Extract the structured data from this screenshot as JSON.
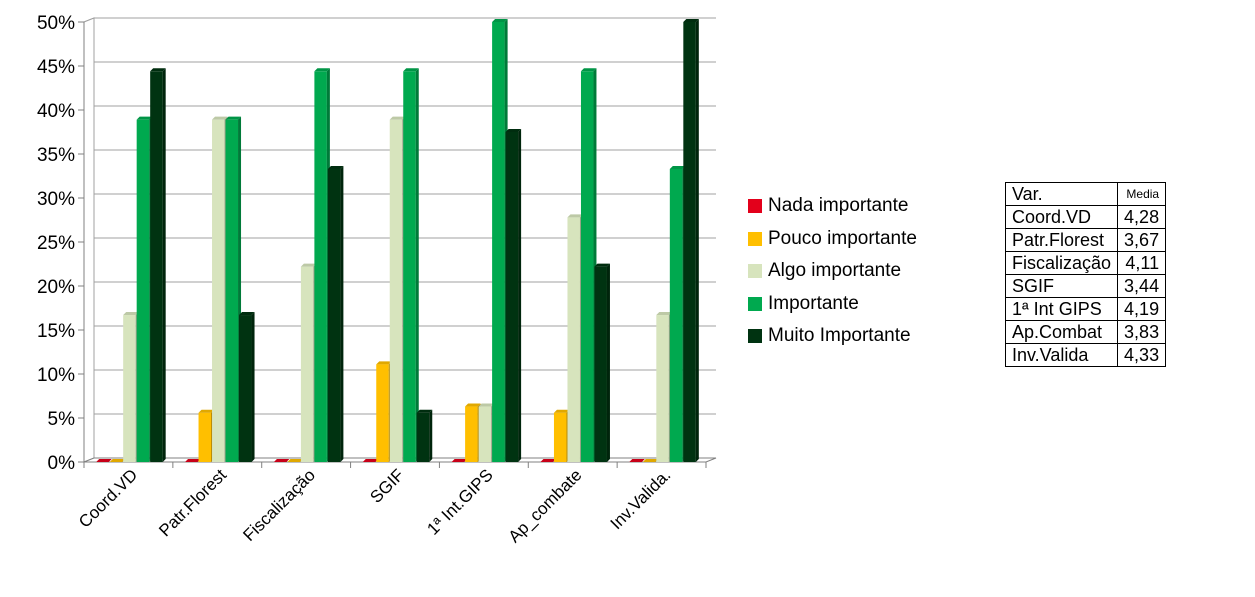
{
  "chart_data": {
    "type": "bar",
    "categories": [
      "Coord.VD",
      "Patr.Florest",
      "Fiscalização",
      "SGIF",
      "1ª Int.GIPS",
      "Ap_combate",
      "Inv.Valida."
    ],
    "series": [
      {
        "name": "Nada importante",
        "color": "#e3001b",
        "values": [
          0,
          0,
          0,
          0,
          0,
          0,
          0
        ]
      },
      {
        "name": "Pouco importante",
        "color": "#ffbf00",
        "values": [
          0,
          5.6,
          0,
          11.1,
          6.3,
          5.6,
          0
        ]
      },
      {
        "name": "Algo importante",
        "color": "#d7e4bd",
        "values": [
          16.7,
          38.9,
          22.2,
          38.9,
          6.3,
          27.8,
          16.7
        ]
      },
      {
        "name": "Importante",
        "color": "#00a94f",
        "values": [
          38.9,
          38.9,
          44.4,
          44.4,
          50.0,
          44.4,
          33.3
        ]
      },
      {
        "name": "Muito Importante",
        "color": "#003311",
        "values": [
          44.4,
          16.7,
          33.3,
          5.6,
          37.5,
          22.2,
          50.0
        ]
      }
    ],
    "yticks": [
      "0%",
      "5%",
      "10%",
      "15%",
      "20%",
      "25%",
      "30%",
      "35%",
      "40%",
      "45%",
      "50%"
    ],
    "ylim": [
      0,
      50
    ],
    "unit": "%",
    "grid": true,
    "legend_position": "right"
  },
  "table": {
    "headers": [
      "Var.",
      "Media"
    ],
    "rows": [
      [
        "Coord.VD",
        "4,28"
      ],
      [
        "Patr.Florest",
        "3,67"
      ],
      [
        "Fiscalização",
        "4,11"
      ],
      [
        "SGIF",
        "3,44"
      ],
      [
        "1ª Int GIPS",
        "4,19"
      ],
      [
        "Ap.Combat",
        "3,83"
      ],
      [
        "Inv.Valida",
        "4,33"
      ]
    ]
  }
}
